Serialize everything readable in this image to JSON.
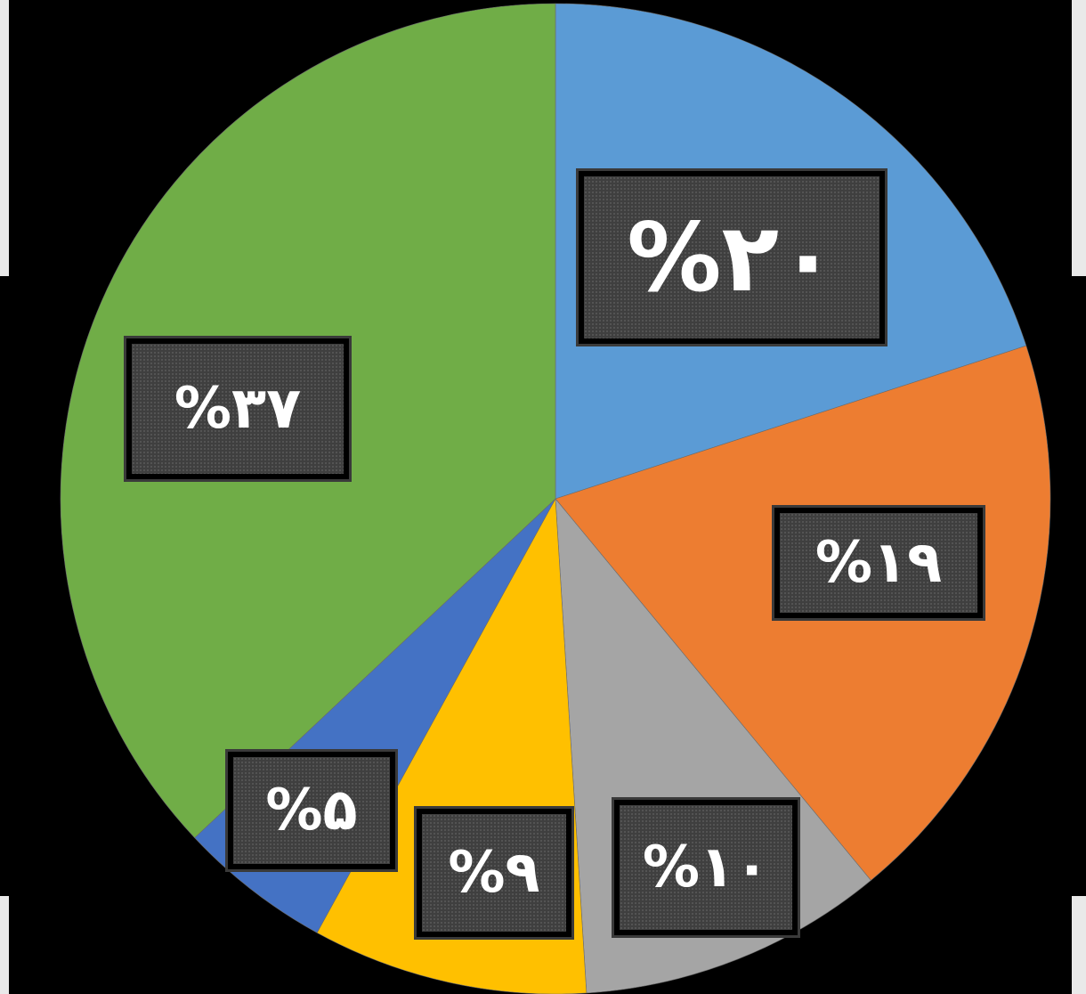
{
  "chart_data": {
    "type": "pie",
    "start_angle_deg": 0,
    "direction": "clockwise",
    "slices": [
      {
        "label": "%۲۰",
        "value": 20,
        "color": "#5b9bd5"
      },
      {
        "label": "%۱۹",
        "value": 19,
        "color": "#ed7d31"
      },
      {
        "label": "%۱۰",
        "value": 10,
        "color": "#a5a5a5"
      },
      {
        "label": "%۹",
        "value": 9,
        "color": "#ffc000"
      },
      {
        "label": "%۵",
        "value": 5,
        "color": "#4472c4"
      },
      {
        "label": "%۳۷",
        "value": 37,
        "color": "#70ad47"
      }
    ]
  }
}
